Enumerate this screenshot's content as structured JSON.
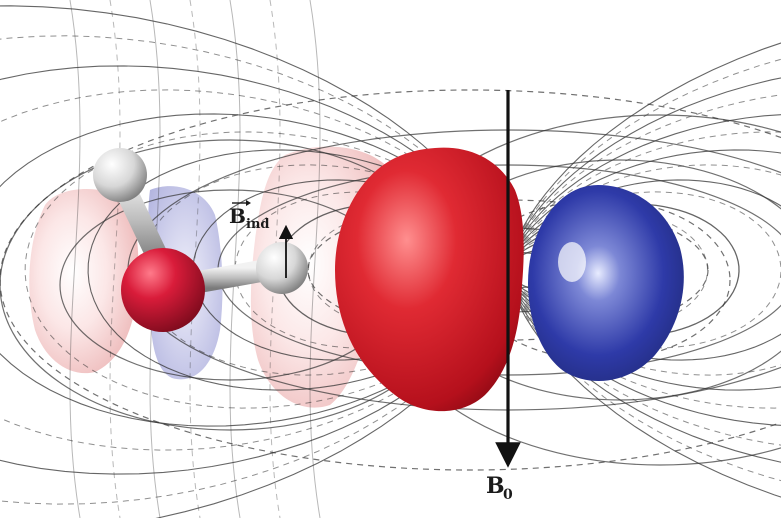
{
  "diagram": {
    "labels": {
      "induced_field_main": "B",
      "induced_field_sub": "ind",
      "external_field_main": "B",
      "external_field_sub": "0"
    },
    "colors": {
      "positive_lobe": "#d42a36",
      "negative_lobe": "#2a3a9a",
      "pale_positive": "#f3c9c9",
      "pale_negative": "#c7c8ec",
      "oxygen_atom": "#d51f3a",
      "hydrogen_atom": "#e6e6e6",
      "field_lines": "#333333"
    }
  }
}
